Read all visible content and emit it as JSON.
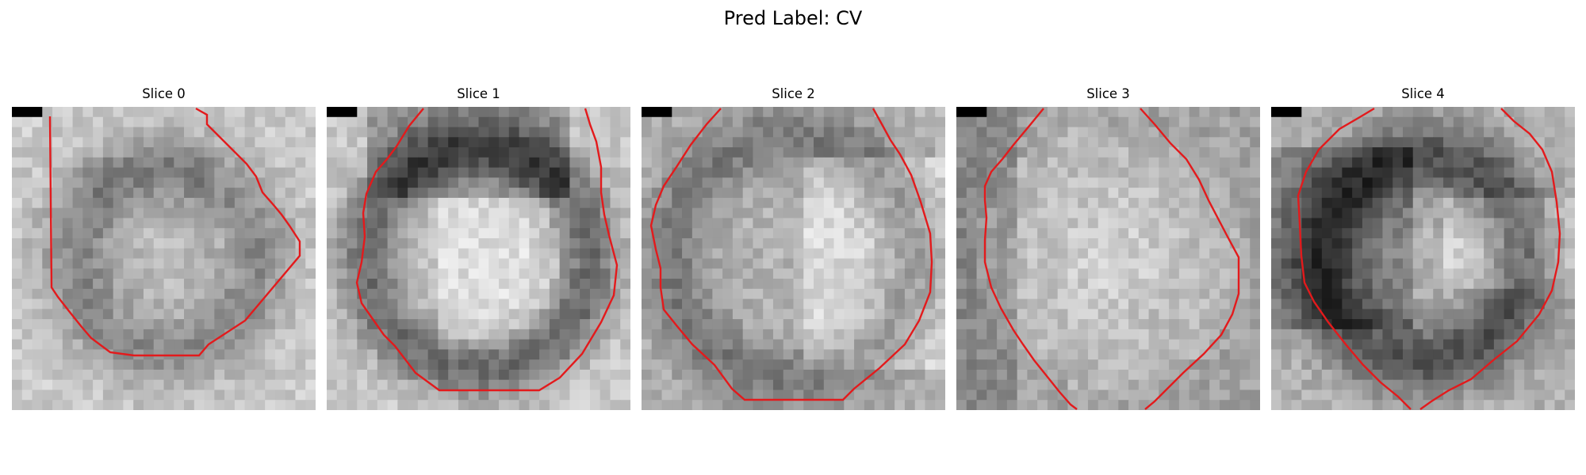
{
  "figure": {
    "title": "Pred Label: CV"
  },
  "slices": [
    {
      "label": "Slice 0",
      "pattern": "faint-ring",
      "seed": 11
    },
    {
      "label": "Slice 1",
      "pattern": "dark-top-ring",
      "seed": 23
    },
    {
      "label": "Slice 2",
      "pattern": "ring-bright-right",
      "seed": 37
    },
    {
      "label": "Slice 3",
      "pattern": "bright-center",
      "seed": 41
    },
    {
      "label": "Slice 4",
      "pattern": "dark-left-ring",
      "seed": 53
    }
  ],
  "colors": {
    "contour": "#e31a1c",
    "marker": "#000000"
  }
}
